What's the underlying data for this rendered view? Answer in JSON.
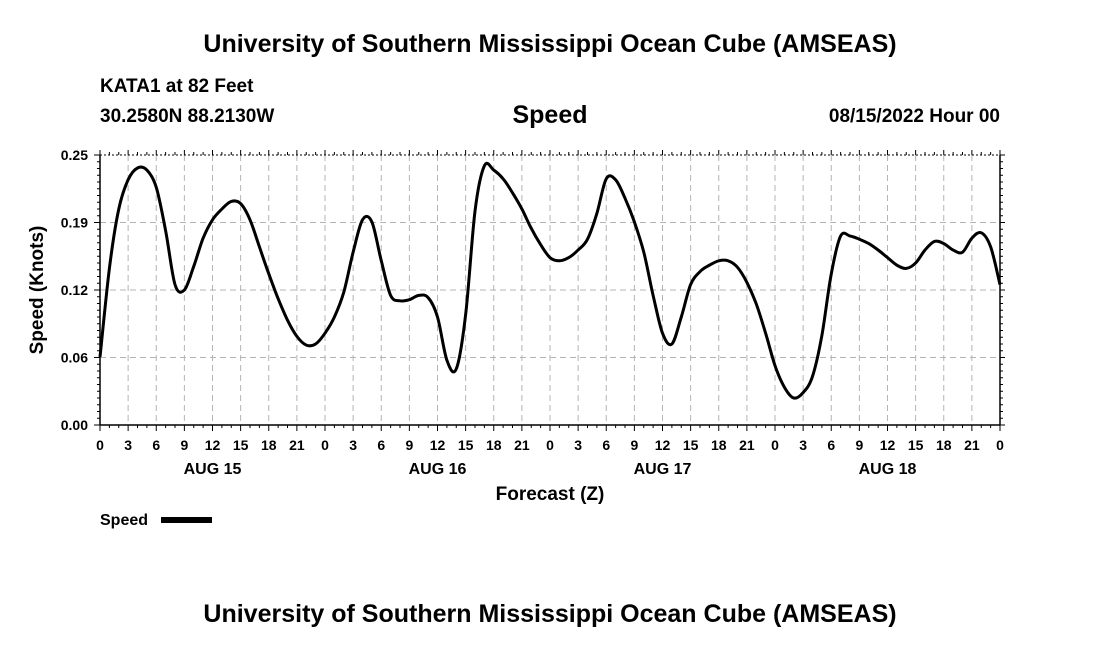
{
  "header": {
    "title_top": "University of Southern Mississippi Ocean Cube (AMSEAS)",
    "station": "KATA1 at 82 Feet",
    "coords": "30.2580N  88.2130W",
    "variable": "Speed",
    "date": "08/15/2022 Hour 00",
    "title_bottom": "University of Southern Mississippi Ocean Cube (AMSEAS)"
  },
  "chart_data": {
    "type": "line",
    "title": "Speed",
    "xlabel": "Forecast (Z)",
    "ylabel": "Speed (Knots)",
    "ylim": [
      0,
      0.25
    ],
    "yticks": [
      "0.00",
      "0.06",
      "0.12",
      "0.19",
      "0.25"
    ],
    "ytick_values": [
      0,
      0.0625,
      0.125,
      0.1875,
      0.25
    ],
    "xlim": [
      0,
      96
    ],
    "xtick_labels": [
      "0",
      "3",
      "6",
      "9",
      "12",
      "15",
      "18",
      "21",
      "0",
      "3",
      "6",
      "9",
      "12",
      "15",
      "18",
      "21",
      "0",
      "3",
      "6",
      "9",
      "12",
      "15",
      "18",
      "21",
      "0",
      "3",
      "6",
      "9",
      "12",
      "15",
      "18",
      "21",
      "0"
    ],
    "day_labels": [
      {
        "hour": 12,
        "label": "AUG 15"
      },
      {
        "hour": 36,
        "label": "AUG 16"
      },
      {
        "hour": 60,
        "label": "AUG 17"
      },
      {
        "hour": 84,
        "label": "AUG 18"
      }
    ],
    "grid": true,
    "series": [
      {
        "name": "Speed",
        "color": "#000000",
        "x": [
          0,
          1,
          2,
          3,
          4,
          5,
          6,
          7,
          8,
          9,
          10,
          11,
          12,
          13,
          14,
          15,
          16,
          17,
          18,
          19,
          20,
          21,
          22,
          23,
          24,
          25,
          26,
          27,
          28,
          29,
          30,
          31,
          32,
          33,
          34,
          35,
          36,
          37,
          38,
          39,
          40,
          41,
          42,
          43,
          44,
          45,
          46,
          47,
          48,
          49,
          50,
          51,
          52,
          53,
          54,
          55,
          56,
          57,
          58,
          59,
          60,
          61,
          62,
          63,
          64,
          65,
          66,
          67,
          68,
          69,
          70,
          71,
          72,
          73,
          74,
          75,
          76,
          77,
          78,
          79,
          80,
          81,
          82,
          83,
          84,
          85,
          86,
          87,
          88,
          89,
          90,
          91,
          92,
          93,
          94,
          95,
          96
        ],
        "y": [
          0.063,
          0.145,
          0.2,
          0.227,
          0.238,
          0.236,
          0.22,
          0.18,
          0.13,
          0.125,
          0.147,
          0.173,
          0.19,
          0.2,
          0.207,
          0.205,
          0.19,
          0.165,
          0.14,
          0.117,
          0.097,
          0.082,
          0.074,
          0.075,
          0.085,
          0.1,
          0.123,
          0.16,
          0.19,
          0.188,
          0.152,
          0.12,
          0.115,
          0.116,
          0.12,
          0.118,
          0.1,
          0.06,
          0.052,
          0.102,
          0.198,
          0.24,
          0.236,
          0.228,
          0.215,
          0.2,
          0.182,
          0.167,
          0.155,
          0.152,
          0.155,
          0.162,
          0.172,
          0.196,
          0.228,
          0.227,
          0.21,
          0.188,
          0.16,
          0.12,
          0.085,
          0.075,
          0.1,
          0.13,
          0.142,
          0.148,
          0.152,
          0.152,
          0.146,
          0.132,
          0.112,
          0.085,
          0.055,
          0.035,
          0.025,
          0.03,
          0.045,
          0.083,
          0.14,
          0.175,
          0.175,
          0.172,
          0.168,
          0.162,
          0.155,
          0.148,
          0.145,
          0.15,
          0.162,
          0.17,
          0.168,
          0.162,
          0.16,
          0.173,
          0.178,
          0.165,
          0.13
        ]
      }
    ],
    "legend": {
      "label": "Speed",
      "placement": "bottom-left"
    }
  }
}
